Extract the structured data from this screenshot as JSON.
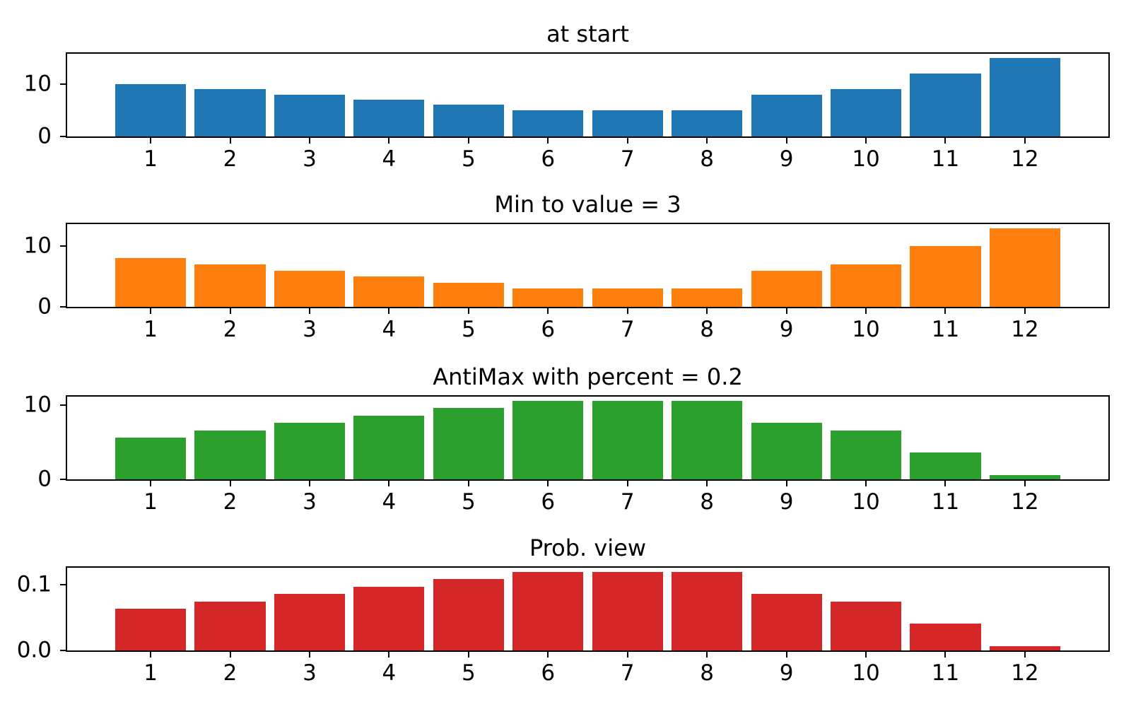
{
  "figure": {
    "background": "#ffffff",
    "text_color": "#000000"
  },
  "chart_data": [
    {
      "type": "bar",
      "title": "at start",
      "color": "#1f77b4",
      "categories": [
        "1",
        "2",
        "3",
        "4",
        "5",
        "6",
        "7",
        "8",
        "9",
        "10",
        "11",
        "12"
      ],
      "values": [
        10,
        9,
        8,
        7,
        6,
        5,
        5,
        5,
        8,
        9,
        12,
        15
      ],
      "xlabel": "",
      "ylabel": "",
      "ylim": [
        0,
        15.75
      ],
      "xlim": [
        -0.05,
        13.05
      ],
      "bar_width": 0.89,
      "grid": false,
      "yticks": [
        {
          "value": 0,
          "label": "0"
        },
        {
          "value": 10,
          "label": "10"
        }
      ]
    },
    {
      "type": "bar",
      "title": "Min to value = 3",
      "color": "#ff7f0e",
      "categories": [
        "1",
        "2",
        "3",
        "4",
        "5",
        "6",
        "7",
        "8",
        "9",
        "10",
        "11",
        "12"
      ],
      "values": [
        8,
        7,
        6,
        5,
        4,
        3,
        3,
        3,
        6,
        7,
        10,
        13
      ],
      "xlabel": "",
      "ylabel": "",
      "ylim": [
        0,
        13.65
      ],
      "xlim": [
        -0.05,
        13.05
      ],
      "bar_width": 0.89,
      "grid": false,
      "yticks": [
        {
          "value": 0,
          "label": "0"
        },
        {
          "value": 10,
          "label": "10"
        }
      ]
    },
    {
      "type": "bar",
      "title": "AntiMax with percent = 0.2",
      "color": "#2ca02c",
      "categories": [
        "1",
        "2",
        "3",
        "4",
        "5",
        "6",
        "7",
        "8",
        "9",
        "10",
        "11",
        "12"
      ],
      "values": [
        5.6,
        6.6,
        7.6,
        8.6,
        9.6,
        10.6,
        10.6,
        10.6,
        7.6,
        6.6,
        3.6,
        0.6
      ],
      "xlabel": "",
      "ylabel": "",
      "ylim": [
        0,
        11.13
      ],
      "xlim": [
        -0.05,
        13.05
      ],
      "bar_width": 0.89,
      "grid": false,
      "yticks": [
        {
          "value": 0,
          "label": "0"
        },
        {
          "value": 10,
          "label": "10"
        }
      ]
    },
    {
      "type": "bar",
      "title": "Prob. view",
      "color": "#d62728",
      "categories": [
        "1",
        "2",
        "3",
        "4",
        "5",
        "6",
        "7",
        "8",
        "9",
        "10",
        "11",
        "12"
      ],
      "values": [
        0.0635,
        0.0748,
        0.0862,
        0.0975,
        0.1088,
        0.1202,
        0.1202,
        0.1202,
        0.0862,
        0.0748,
        0.0408,
        0.0068
      ],
      "xlabel": "",
      "ylabel": "",
      "ylim": [
        0,
        0.1262
      ],
      "xlim": [
        -0.05,
        13.05
      ],
      "bar_width": 0.89,
      "grid": false,
      "yticks": [
        {
          "value": 0,
          "label": "0.0"
        },
        {
          "value": 0.1,
          "label": "0.1"
        }
      ]
    }
  ]
}
